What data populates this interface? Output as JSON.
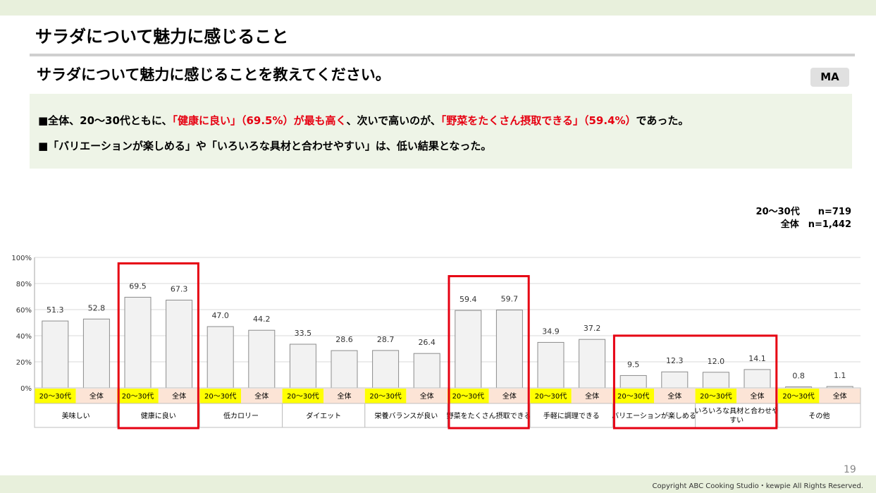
{
  "slide_title": "サラダについて魅力に感じること",
  "question": "サラダについて魅力に感じることを教えてください。",
  "badge": "MA",
  "summary": {
    "line1": {
      "p1": "■全体、20～30代ともに、",
      "r1": "「健康に良い」（69.5%）が最も高く",
      "p2": "、次いで高いのが、",
      "r2": "「野菜をたくさん摂取できる」（59.4%）",
      "p3": "であった。"
    },
    "line2": "■「バリエーションが楽しめる」や「いろいろな具材と合わせやすい」は、低い結果となった。"
  },
  "sample": {
    "row1": "20～30代　　n=719",
    "row2": "全体　n=1,442"
  },
  "colors": {
    "bar_fill": "#f2f2f2",
    "bar_stroke": "#8c8c8c",
    "gridline": "#d9d9d9",
    "label_20s_bg": "#ffff00",
    "label_all_bg": "#fce4d6",
    "highlight_box": "#e60012",
    "accent_red": "#e60012"
  },
  "chart_data": {
    "type": "bar",
    "ylim": [
      0,
      100
    ],
    "ytick_labels": [
      "0%",
      "20%",
      "40%",
      "60%",
      "80%",
      "100%"
    ],
    "grid": true,
    "series_labels": [
      "20～30代",
      "全体"
    ],
    "categories": [
      {
        "label": "美味しい",
        "values": [
          51.3,
          52.8
        ],
        "value_labels": [
          "51.3",
          "52.8"
        ],
        "highlight": false
      },
      {
        "label": "健康に良い",
        "values": [
          69.5,
          67.3
        ],
        "value_labels": [
          "69.5",
          "67.3"
        ],
        "highlight": true
      },
      {
        "label": "低カロリー",
        "values": [
          47.0,
          44.2
        ],
        "value_labels": [
          "47.0",
          "44.2"
        ],
        "highlight": false
      },
      {
        "label": "ダイエット",
        "values": [
          33.5,
          28.6
        ],
        "value_labels": [
          "33.5",
          "28.6"
        ],
        "highlight": false
      },
      {
        "label": "栄養バランスが良い",
        "values": [
          28.7,
          26.4
        ],
        "value_labels": [
          "28.7",
          "26.4"
        ],
        "highlight": false
      },
      {
        "label": "野菜をたくさん摂取できる",
        "values": [
          59.4,
          59.7
        ],
        "value_labels": [
          "59.4",
          "59.7"
        ],
        "highlight": true
      },
      {
        "label": "手軽に調理できる",
        "values": [
          34.9,
          37.2
        ],
        "value_labels": [
          "34.9",
          "37.2"
        ],
        "highlight": false
      },
      {
        "label": "バリエーションが楽しめる",
        "values": [
          9.5,
          12.3
        ],
        "value_labels": [
          "9.5",
          "12.3"
        ],
        "highlight": true
      },
      {
        "label": "いろいろな具材と合わせやすい",
        "values": [
          12.0,
          14.1
        ],
        "value_labels": [
          "12.0",
          "14.1"
        ],
        "highlight": true
      },
      {
        "label": "その他",
        "values": [
          0.8,
          1.1
        ],
        "value_labels": [
          "0.8",
          "1.1"
        ],
        "highlight": false
      }
    ],
    "label_lines": {
      "いろいろな具材と合わせやすい": [
        "いろいろな具材と合わせや",
        "すい"
      ]
    }
  },
  "page_number": "19",
  "copyright": "Copyright ABC Cooking Studio・kewpie All Rights Reserved."
}
